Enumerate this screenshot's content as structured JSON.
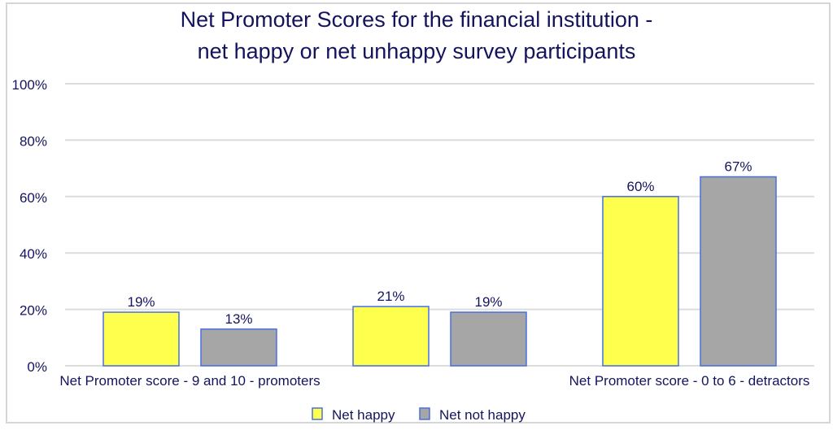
{
  "chart_data": {
    "type": "bar",
    "title_lines": [
      "Net Promoter Scores for the financial institution -",
      "net happy or net unhappy survey participants"
    ],
    "categories": [
      "Net Promoter score - 9 and 10 - promoters",
      "",
      "Net Promoter score - 0 to 6 - detractors"
    ],
    "series": [
      {
        "name": "Net happy",
        "values": [
          19,
          21,
          60
        ],
        "color": "#ffff4d",
        "labels": [
          "19%",
          "21%",
          "60%"
        ]
      },
      {
        "name": "Net not happy",
        "values": [
          13,
          19,
          67
        ],
        "color": "#a6a6a6",
        "labels": [
          "13%",
          "19%",
          "67%"
        ]
      }
    ],
    "ylim": [
      0,
      100
    ],
    "yticks": [
      "0%",
      "20%",
      "40%",
      "60%",
      "80%",
      "100%"
    ],
    "xlabel": "",
    "ylabel": "",
    "grid": true,
    "legend": "bottom",
    "bar_border_color": "#4a6ee0",
    "text_color": "#14145e"
  }
}
